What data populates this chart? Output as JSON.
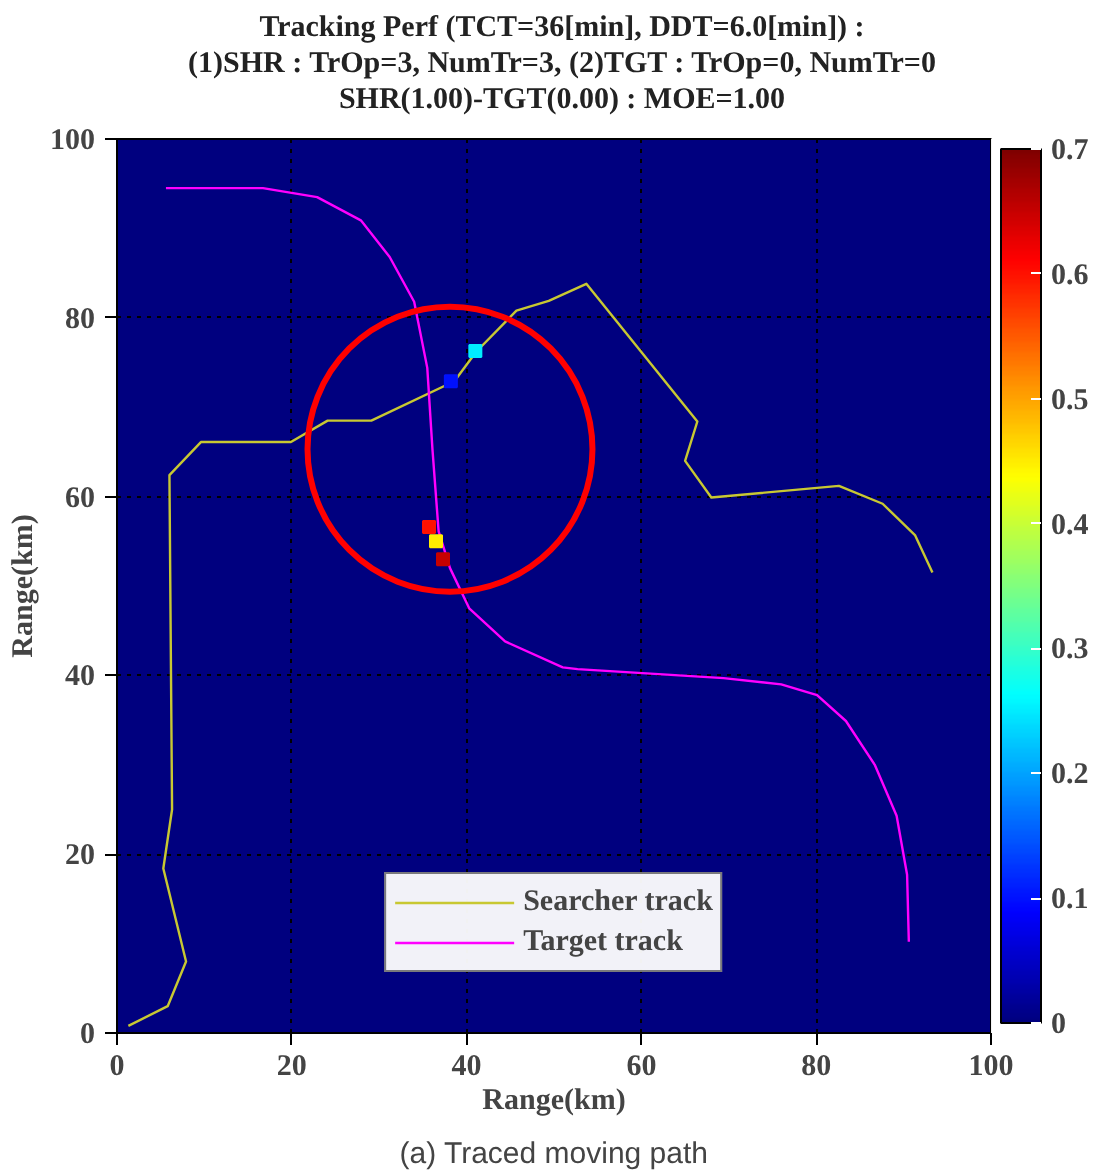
{
  "chart_data": {
    "type": "line",
    "title": "Tracking Perf (TCT=36[min], DDT=6.0[min]) :\n(1)SHR : TrOp=3, NumTr=3, (2)TGT : TrOp=0, NumTr=0\nSHR(1.00)-TGT(0.00) : MOE=1.00",
    "xlabel": "Range(km)",
    "ylabel": "Range(km)",
    "annotations": [
      "(a) Traced moving path"
    ],
    "xlim": [
      0,
      100
    ],
    "ylim": [
      0,
      100
    ],
    "xticks": [
      0,
      20,
      40,
      60,
      80,
      100
    ],
    "yticks": [
      0,
      20,
      40,
      60,
      80,
      100
    ],
    "grid": true,
    "legend": "bottom",
    "clim": [
      0,
      0.7
    ],
    "cticks": [
      0,
      0.1,
      0.2,
      0.3,
      0.4,
      0.5,
      0.6,
      0.7
    ],
    "series": [
      {
        "name": "Searcher track",
        "color": "#c8c832",
        "x": [
          1.3,
          5.8,
          7.9,
          5.3,
          6.3,
          6.0,
          9.6,
          19.9,
          24.1,
          29.1,
          38.6,
          41.1,
          45.7,
          49.4,
          53.7,
          66.4,
          65.0,
          68.0,
          82.6,
          87.6,
          91.3,
          93.3
        ],
        "values": [
          0.8,
          3.0,
          8.0,
          18.4,
          25.0,
          62.4,
          66.1,
          66.1,
          68.5,
          68.5,
          72.9,
          76.2,
          80.8,
          81.9,
          83.8,
          68.4,
          64.0,
          59.9,
          61.2,
          59.2,
          55.7,
          51.5
        ]
      },
      {
        "name": "Target track",
        "color": "#ff00ff",
        "x": [
          5.6,
          16.7,
          22.9,
          27.9,
          31.2,
          34.0,
          35.5,
          36.1,
          36.8,
          38.1,
          40.3,
          44.4,
          51.0,
          52.7,
          69.4,
          76.0,
          80.1,
          83.4,
          86.7,
          89.2,
          90.4,
          90.6
        ],
        "values": [
          94.5,
          94.5,
          93.5,
          90.9,
          86.8,
          81.8,
          74.4,
          65.2,
          56.1,
          52.0,
          47.5,
          43.8,
          40.9,
          40.7,
          39.7,
          39.0,
          37.8,
          34.9,
          30.0,
          24.3,
          17.7,
          10.2
        ]
      },
      {
        "type": "scatter",
        "marker": "square",
        "x": [
          35.7,
          36.5,
          37.3,
          38.2,
          41.0
        ],
        "values": [
          56.6,
          55.0,
          53.0,
          72.9,
          76.3
        ],
        "cvalues": [
          0.6,
          0.45,
          0.65,
          0.1,
          0.25
        ],
        "colors": [
          "#ff1200",
          "#ffed00",
          "#c80000",
          "#0012ff",
          "#00edff"
        ]
      }
    ]
  }
}
